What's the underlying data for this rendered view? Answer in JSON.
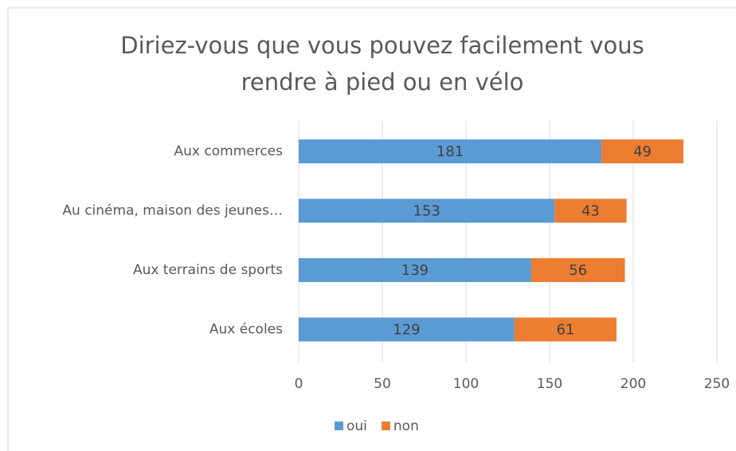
{
  "chart_data": {
    "type": "stacked-barh",
    "title": "Diriez-vous que vous pouvez facilement vous rendre à pied ou en vélo",
    "categories": [
      "Aux commerces",
      "Au cinéma, maison des jeunes…",
      "Aux terrains de sports",
      "Aux écoles"
    ],
    "series": [
      {
        "name": "oui",
        "color": "#5b9bd5",
        "values": [
          181,
          153,
          139,
          129
        ]
      },
      {
        "name": "non",
        "color": "#ed7d31",
        "values": [
          49,
          43,
          56,
          61
        ]
      }
    ],
    "xlim": [
      0,
      250
    ],
    "xticks": [
      0,
      50,
      100,
      150,
      200,
      250
    ],
    "grid": true,
    "legend": "bottom"
  }
}
